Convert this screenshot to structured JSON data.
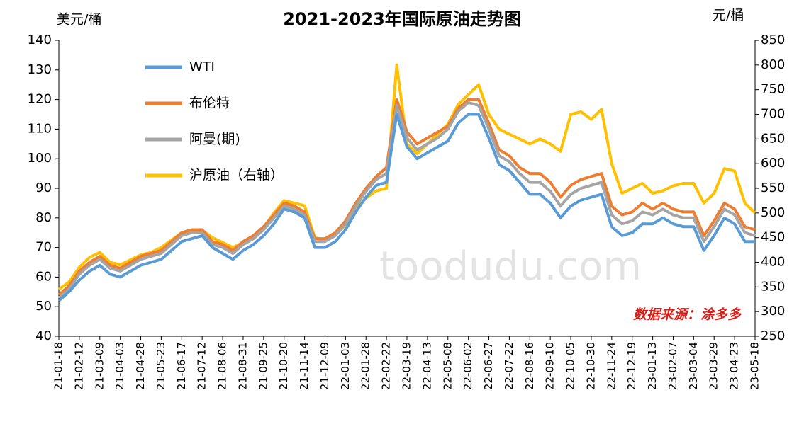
{
  "chart_data": {
    "type": "line",
    "title": "2021-2023年国际原油走势图",
    "y_label": "美元/桶",
    "y2_label": "元/桶",
    "annotation": "数据来源：涂多多",
    "watermark": "toodudu.com",
    "categories": [
      "21-01-18",
      null,
      "21-02-12",
      null,
      "21-03-09",
      null,
      "21-04-03",
      null,
      "21-04-28",
      null,
      "21-05-23",
      null,
      "21-06-17",
      null,
      "21-07-12",
      null,
      "21-08-06",
      null,
      "21-08-31",
      null,
      "21-09-25",
      null,
      "21-10-20",
      null,
      "21-11-14",
      null,
      "21-12-09",
      null,
      "22-01-03",
      null,
      "22-01-28",
      null,
      "22-02-22",
      null,
      "22-03-19",
      null,
      "22-04-13",
      null,
      "22-05-08",
      null,
      "22-06-02",
      null,
      "22-06-27",
      null,
      "22-07-22",
      null,
      "22-08-16",
      null,
      "22-09-10",
      null,
      "22-10-05",
      null,
      "22-10-30",
      null,
      "22-11-24",
      null,
      "22-12-19",
      null,
      "23-01-13",
      null,
      "23-02-07",
      null,
      "23-03-04",
      null,
      "23-03-29",
      null,
      "23-04-23",
      null,
      "23-05-18"
    ],
    "series": [
      {
        "name": "WTI",
        "color": "#5b9bd5",
        "values": [
          52,
          55,
          59,
          62,
          64,
          61,
          60,
          62,
          64,
          65,
          66,
          69,
          72,
          73,
          74,
          70,
          68,
          66,
          69,
          71,
          74,
          78,
          83,
          82,
          80,
          70,
          70,
          72,
          76,
          82,
          87,
          91,
          92,
          115,
          104,
          100,
          102,
          104,
          106,
          112,
          115,
          115,
          107,
          98,
          96,
          92,
          88,
          88,
          85,
          80,
          84,
          86,
          87,
          88,
          77,
          74,
          75,
          78,
          78,
          80,
          78,
          77,
          77,
          69,
          74,
          80,
          78,
          72,
          72
        ]
      },
      {
        "name": "布伦特",
        "color": "#ed7d31",
        "values": [
          54,
          57,
          62,
          65,
          67,
          64,
          63,
          65,
          67,
          68,
          69,
          72,
          75,
          76,
          76,
          72,
          71,
          69,
          72,
          74,
          77,
          81,
          85,
          84,
          82,
          73,
          73,
          75,
          79,
          85,
          90,
          94,
          97,
          120,
          109,
          105,
          107,
          109,
          111,
          117,
          120,
          120,
          112,
          103,
          101,
          97,
          95,
          95,
          92,
          87,
          91,
          93,
          94,
          95,
          84,
          81,
          82,
          85,
          83,
          85,
          83,
          82,
          82,
          74,
          79,
          85,
          83,
          77,
          76
        ]
      },
      {
        "name": "阿曼(期)",
        "color": "#a5a5a5",
        "values": [
          53,
          56,
          61,
          64,
          66,
          63,
          62,
          64,
          66,
          67,
          68,
          71,
          74,
          75,
          75,
          71,
          70,
          68,
          71,
          73,
          76,
          80,
          84,
          83,
          81,
          72,
          72,
          74,
          78,
          84,
          89,
          93,
          95,
          118,
          107,
          103,
          105,
          107,
          110,
          116,
          119,
          118,
          110,
          101,
          99,
          95,
          92,
          92,
          89,
          84,
          88,
          90,
          91,
          92,
          81,
          78,
          79,
          82,
          81,
          83,
          81,
          80,
          80,
          72,
          77,
          83,
          81,
          75,
          74
        ]
      },
      {
        "name": "沪原油（右轴）",
        "color": "#ffc000",
        "axis": "y2",
        "values": [
          345,
          360,
          390,
          410,
          420,
          400,
          395,
          405,
          415,
          420,
          430,
          445,
          460,
          465,
          465,
          450,
          440,
          430,
          440,
          450,
          470,
          500,
          525,
          520,
          515,
          450,
          445,
          455,
          475,
          510,
          530,
          545,
          550,
          800,
          640,
          620,
          640,
          660,
          680,
          720,
          740,
          760,
          700,
          670,
          660,
          650,
          640,
          650,
          640,
          625,
          700,
          705,
          690,
          710,
          600,
          540,
          550,
          560,
          540,
          545,
          555,
          560,
          560,
          520,
          540,
          590,
          585,
          520,
          500
        ]
      }
    ],
    "ylim": [
      40,
      140
    ],
    "yticks": [
      40,
      50,
      60,
      70,
      80,
      90,
      100,
      110,
      120,
      130,
      140
    ],
    "y2lim": [
      250,
      850
    ],
    "y2ticks": [
      250,
      300,
      350,
      400,
      450,
      500,
      550,
      600,
      650,
      700,
      750,
      800,
      850
    ],
    "legend": "top-left",
    "grid": false
  }
}
